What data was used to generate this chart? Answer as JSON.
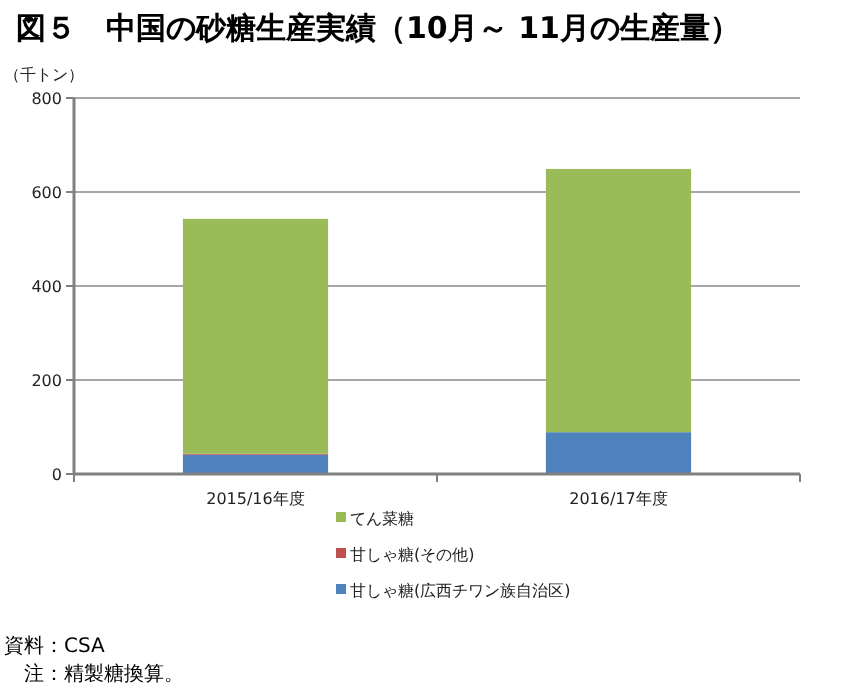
{
  "chart_data": {
    "type": "bar",
    "title": "図５　中国の砂糖生産実績（10月～ 11月の生産量）",
    "ylabel": "（千トン）",
    "categories": [
      "2015/16年度",
      "2016/17年度"
    ],
    "series": [
      {
        "name": "甘しゃ糖(広西チワン族自治区)",
        "color": "#4f81bd",
        "values": [
          41,
          89
        ]
      },
      {
        "name": "甘しゃ糖(その他)",
        "color": "#c0504d",
        "values": [
          2,
          0
        ]
      },
      {
        "name": "てん菜糖",
        "color": "#9bbb59",
        "values": [
          500,
          560
        ]
      }
    ],
    "stacked": true,
    "ylim": [
      0,
      800
    ],
    "yticks": [
      0,
      200,
      400,
      600,
      800
    ],
    "grid": "y",
    "legend": "bottom",
    "annotations": [
      "資料：CSA",
      "　注：精製糖換算。"
    ]
  }
}
